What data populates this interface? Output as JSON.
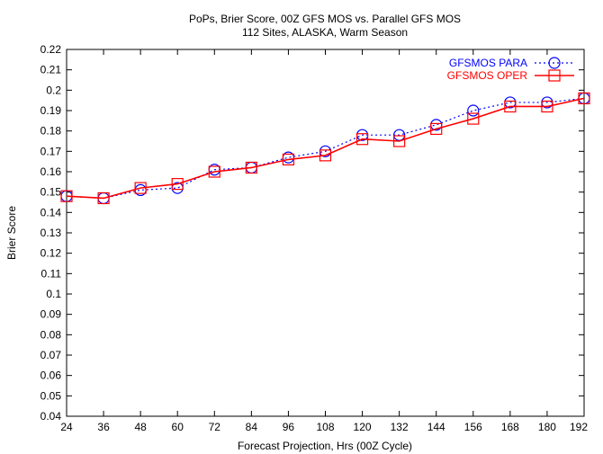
{
  "chart_data": {
    "type": "line",
    "title": [
      "PoPs, Brier Score, 00Z GFS MOS vs. Parallel GFS MOS",
      "112 Sites, ALASKA, Warm Season"
    ],
    "xlabel": "Forecast Projection, Hrs (00Z Cycle)",
    "ylabel": "Brier Score",
    "x": [
      24,
      36,
      48,
      60,
      72,
      84,
      96,
      108,
      120,
      132,
      144,
      156,
      168,
      180,
      192
    ],
    "xlim": [
      24,
      192
    ],
    "ylim": [
      0.04,
      0.22
    ],
    "x_ticks": [
      "24",
      "36",
      "48",
      "60",
      "72",
      "84",
      "96",
      "108",
      "120",
      "132",
      "144",
      "156",
      "168",
      "180",
      "192"
    ],
    "y_ticks": [
      "0.04",
      "0.05",
      "0.06",
      "0.07",
      "0.08",
      "0.09",
      "0.1",
      "0.11",
      "0.12",
      "0.13",
      "0.14",
      "0.15",
      "0.16",
      "0.17",
      "0.18",
      "0.19",
      "0.2",
      "0.21",
      "0.22"
    ],
    "grid": false,
    "legend_position": "top-right",
    "series": [
      {
        "name": "GFSMOS PARA",
        "color": "#0000ff",
        "line_style": "dotted",
        "marker": "circle",
        "values": [
          0.148,
          0.147,
          0.151,
          0.152,
          0.161,
          0.162,
          0.167,
          0.17,
          0.178,
          0.178,
          0.183,
          0.19,
          0.194,
          0.194,
          0.196
        ]
      },
      {
        "name": "GFSMOS OPER",
        "color": "#ff0000",
        "line_style": "solid",
        "marker": "square",
        "values": [
          0.148,
          0.147,
          0.152,
          0.154,
          0.16,
          0.162,
          0.166,
          0.168,
          0.176,
          0.175,
          0.181,
          0.186,
          0.192,
          0.192,
          0.196
        ]
      }
    ]
  }
}
